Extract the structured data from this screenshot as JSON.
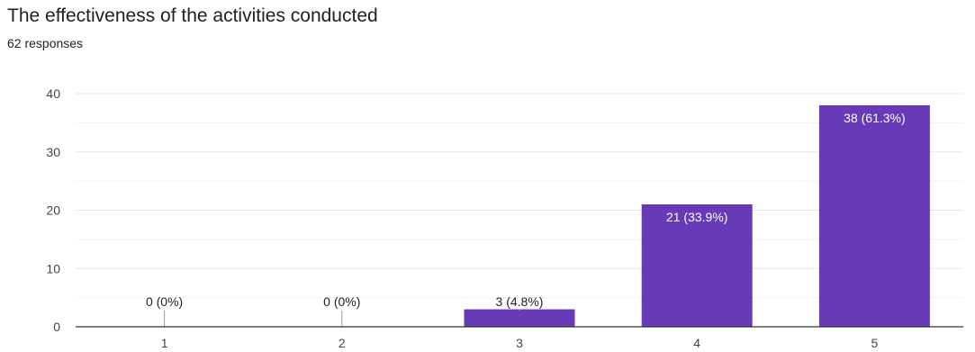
{
  "title": "The effectiveness of the activities conducted",
  "subtitle": "62 responses",
  "colors": {
    "bar": "#673ab7",
    "grid_major": "#e6e6e6",
    "grid_minor": "#f3f3f3",
    "axis": "#333333",
    "label_inside": "#ffffff",
    "label_outside": "#222222",
    "tick": "#444444"
  },
  "chart_data": {
    "type": "bar",
    "title": "The effectiveness of the activities conducted",
    "subtitle": "62 responses",
    "categories": [
      "1",
      "2",
      "3",
      "4",
      "5"
    ],
    "values": [
      0,
      0,
      3,
      21,
      38
    ],
    "data_labels": [
      "0 (0%)",
      "0 (0%)",
      "3 (4.8%)",
      "21 (33.9%)",
      "38 (61.3%)"
    ],
    "ylim": [
      0,
      40
    ],
    "yticks": [
      0,
      10,
      20,
      30,
      40
    ],
    "xlabel": "",
    "ylabel": "",
    "grid": true,
    "legend": "none"
  }
}
